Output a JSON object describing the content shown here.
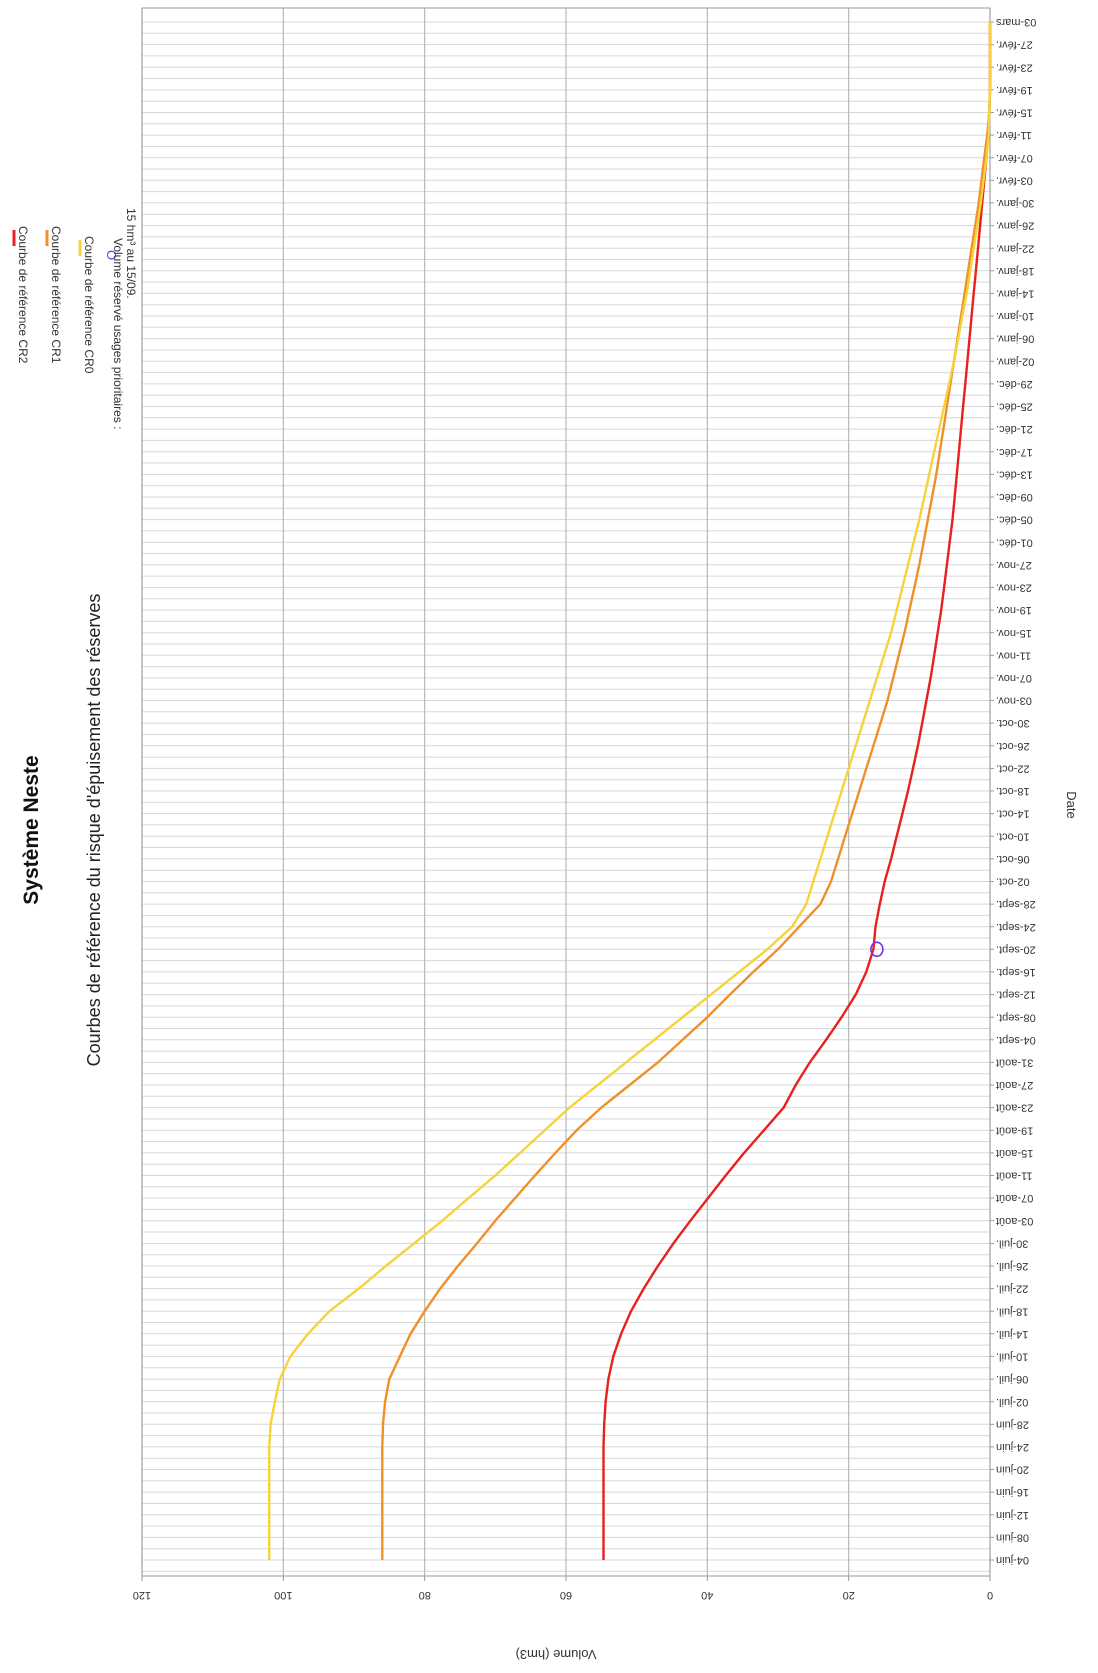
{
  "chart_data": {
    "type": "line",
    "title": "Système Neste",
    "subtitle": "Courbes de référence du risque d'épuisement des réserves",
    "xlabel": "Date",
    "ylabel": "Volume (hm3)",
    "ylim": [
      0,
      120
    ],
    "yticks": [
      0,
      20,
      40,
      60,
      80,
      100,
      120
    ],
    "grid": true,
    "orientation": "rotated-90",
    "x": [
      "04-juin",
      "08-juin",
      "12-juin",
      "16-juin",
      "20-juin",
      "24-juin",
      "28-juin",
      "02-juil.",
      "06-juil.",
      "10-juil.",
      "14-juil.",
      "18-juil.",
      "22-juil.",
      "26-juil.",
      "30-juil.",
      "03-août",
      "07-août",
      "11-août",
      "15-août",
      "19-août",
      "23-août",
      "27-août",
      "31-août",
      "04-sept.",
      "08-sept.",
      "12-sept.",
      "16-sept.",
      "20-sept.",
      "24-sept.",
      "28-sept.",
      "02-oct.",
      "06-oct.",
      "10-oct.",
      "14-oct.",
      "18-oct.",
      "22-oct.",
      "26-oct.",
      "30-oct.",
      "03-nov.",
      "07-nov.",
      "11-nov.",
      "15-nov.",
      "19-nov.",
      "23-nov.",
      "27-nov.",
      "01-déc.",
      "05-déc.",
      "09-déc.",
      "13-déc.",
      "17-déc.",
      "21-déc.",
      "25-déc.",
      "29-déc.",
      "02-janv.",
      "06-janv.",
      "10-janv.",
      "14-janv.",
      "18-janv.",
      "22-janv.",
      "26-janv.",
      "30-janv.",
      "03-févr.",
      "07-févr.",
      "11-févr.",
      "15-févr.",
      "19-févr.",
      "23-févr.",
      "27-févr.",
      "03-mars"
    ],
    "series": [
      {
        "name": "Courbe de référence CR2",
        "color": "#e8201e",
        "values": [
          54.7,
          54.7,
          54.7,
          54.7,
          54.7,
          54.7,
          54.6,
          54.4,
          54.0,
          53.3,
          52.2,
          50.8,
          49.0,
          47.0,
          44.8,
          42.4,
          39.9,
          37.4,
          34.8,
          32.0,
          29.2,
          27.5,
          25.5,
          23.2,
          21.0,
          19.0,
          17.5,
          16.5,
          16.2,
          15.6,
          14.9,
          14.0,
          13.2,
          12.4,
          11.6,
          10.9,
          10.2,
          9.6,
          9.0,
          8.4,
          7.9,
          7.4,
          6.9,
          6.5,
          6.1,
          5.7,
          5.3,
          5.0,
          4.7,
          4.4,
          4.1,
          3.8,
          3.5,
          3.2,
          2.9,
          2.6,
          2.3,
          2.0,
          1.7,
          1.4,
          1.1,
          0.8,
          0.5,
          0.3,
          0.1,
          0.0,
          0.0,
          0.0,
          0.0
        ]
      },
      {
        "name": "Courbe de référence CR1",
        "color": "#f0902a",
        "values": [
          86.0,
          86.0,
          86.0,
          86.0,
          86.0,
          86.0,
          85.9,
          85.6,
          85.0,
          83.5,
          82.0,
          80.0,
          77.8,
          75.3,
          72.6,
          70.0,
          67.2,
          64.4,
          61.5,
          58.5,
          55.0,
          51.0,
          47.0,
          43.5,
          40.0,
          36.8,
          33.5,
          30.0,
          27.0,
          24.0,
          22.5,
          21.5,
          20.5,
          19.5,
          18.5,
          17.5,
          16.5,
          15.5,
          14.5,
          13.7,
          12.9,
          12.1,
          11.4,
          10.7,
          10.0,
          9.4,
          8.8,
          8.2,
          7.6,
          7.1,
          6.6,
          6.1,
          5.6,
          5.1,
          4.6,
          4.1,
          3.6,
          3.1,
          2.6,
          2.1,
          1.6,
          1.2,
          0.8,
          0.4,
          0.1,
          0.0,
          0.0,
          0.0,
          0.0
        ]
      },
      {
        "name": "Courbe de référence CR0",
        "color": "#f5d33a",
        "values": [
          102.0,
          102.0,
          102.0,
          102.0,
          102.0,
          102.0,
          101.8,
          101.2,
          100.5,
          99.0,
          96.5,
          93.5,
          89.3,
          85.5,
          81.5,
          77.5,
          73.8,
          70.0,
          66.5,
          63.0,
          59.5,
          55.5,
          51.5,
          47.5,
          43.5,
          39.5,
          35.5,
          31.5,
          28.0,
          26.0,
          25.0,
          24.0,
          23.0,
          22.0,
          21.0,
          20.0,
          19.0,
          18.0,
          17.0,
          16.0,
          15.0,
          14.0,
          13.2,
          12.4,
          11.6,
          10.8,
          10.0,
          9.3,
          8.6,
          7.9,
          7.2,
          6.5,
          5.8,
          5.1,
          4.5,
          3.9,
          3.3,
          2.8,
          2.3,
          1.8,
          1.3,
          0.9,
          0.5,
          0.2,
          0.1,
          0.0,
          0.0,
          0.0,
          0.0
        ]
      }
    ],
    "markers": [
      {
        "name": "Volume réservé usages prioritaires : 15 hm³ au 15/09.",
        "x": "20-sept.",
        "y": 16,
        "color": "#7a2ff0"
      }
    ],
    "legend": {
      "placement": "top-left",
      "entries": [
        {
          "label": "Courbe de référence CR2",
          "color": "#e8201e"
        },
        {
          "label": "Courbe de référence CR1",
          "color": "#f0902a"
        },
        {
          "label": "Courbe de référence CR0",
          "color": "#f5d33a"
        }
      ],
      "marker_symbol": "O",
      "marker_line1": "Volume réservé usages prioritaires :",
      "marker_line2": "15 hm³ au 15/09."
    }
  }
}
